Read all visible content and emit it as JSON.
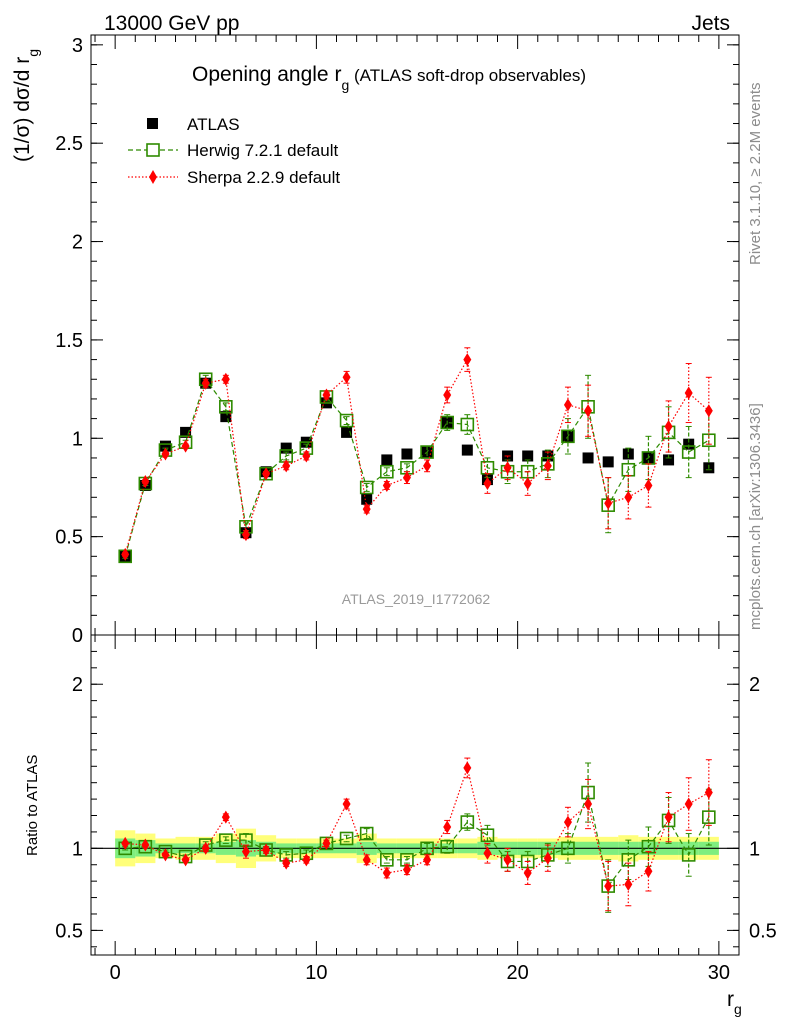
{
  "header": {
    "left": "13000 GeV pp",
    "right": "Jets"
  },
  "side_labels": {
    "rivet": "Rivet 3.1.10, ≥ 2.2M events",
    "mcplots": "mcplots.cern.ch [arXiv:1306.3436]"
  },
  "watermark": "ATLAS_2019_I1772062",
  "chart_data": [
    {
      "type": "scatter",
      "title_main": "Opening angle r",
      "title_sub": "g",
      "title_tail": " (ATLAS soft-drop observables)",
      "ylabel_main": "(1/σ) dσ/d r",
      "ylabel_sub": "g",
      "xlim": [
        -1.2,
        31
      ],
      "ylim": [
        0,
        3.05
      ],
      "yticks": [
        0,
        0.5,
        1,
        1.5,
        2,
        2.5,
        3
      ],
      "ytick_labels": [
        "0",
        "0.5",
        "1",
        "1.5",
        "2",
        "2.5",
        "3"
      ],
      "legend_position": "top-left",
      "series": [
        {
          "name": "ATLAS",
          "color": "#000000",
          "marker": "square-filled",
          "x": [
            0.5,
            1.5,
            2.5,
            3.5,
            4.5,
            5.5,
            6.5,
            7.5,
            8.5,
            9.5,
            10.5,
            11.5,
            12.5,
            13.5,
            14.5,
            15.5,
            16.5,
            17.5,
            18.5,
            19.5,
            20.5,
            21.5,
            22.5,
            23.5,
            24.5,
            25.5,
            26.5,
            27.5,
            28.5,
            29.5
          ],
          "y": [
            0.4,
            0.76,
            0.96,
            1.03,
            1.28,
            1.11,
            0.52,
            0.83,
            0.95,
            0.98,
            1.18,
            1.03,
            0.69,
            0.89,
            0.92,
            0.93,
            1.08,
            0.94,
            0.79,
            0.91,
            0.91,
            0.91,
            1.01,
            0.9,
            0.88,
            0.92,
            0.9,
            0.89,
            0.97,
            0.85
          ],
          "err": [
            0,
            0,
            0,
            0,
            0,
            0,
            0,
            0,
            0,
            0,
            0,
            0,
            0,
            0,
            0,
            0,
            0,
            0,
            0,
            0,
            0,
            0,
            0,
            0,
            0,
            0,
            0,
            0,
            0,
            0
          ]
        },
        {
          "name": "Herwig 7.2.1 default",
          "color": "#2e8b00",
          "marker": "square-open",
          "line": "dashed",
          "x": [
            0.5,
            1.5,
            2.5,
            3.5,
            4.5,
            5.5,
            6.5,
            7.5,
            8.5,
            9.5,
            10.5,
            11.5,
            12.5,
            13.5,
            14.5,
            15.5,
            16.5,
            17.5,
            18.5,
            19.5,
            20.5,
            21.5,
            22.5,
            23.5,
            24.5,
            25.5,
            26.5,
            27.5,
            28.5,
            29.5
          ],
          "y": [
            0.4,
            0.77,
            0.94,
            0.98,
            1.3,
            1.16,
            0.55,
            0.82,
            0.91,
            0.95,
            1.21,
            1.09,
            0.75,
            0.83,
            0.85,
            0.93,
            1.08,
            1.07,
            0.85,
            0.83,
            0.83,
            0.87,
            1.01,
            1.16,
            0.66,
            0.84,
            0.9,
            1.03,
            0.93,
            0.99
          ],
          "err": [
            0.01,
            0.01,
            0.01,
            0.01,
            0.02,
            0.02,
            0.02,
            0.01,
            0.02,
            0.02,
            0.02,
            0.02,
            0.02,
            0.02,
            0.02,
            0.03,
            0.04,
            0.05,
            0.05,
            0.06,
            0.06,
            0.07,
            0.09,
            0.16,
            0.14,
            0.11,
            0.11,
            0.13,
            0.13,
            0.15
          ]
        },
        {
          "name": "Sherpa 2.2.9 default",
          "color": "#ff0000",
          "marker": "diamond-filled",
          "line": "dotted",
          "x": [
            0.5,
            1.5,
            2.5,
            3.5,
            4.5,
            5.5,
            6.5,
            7.5,
            8.5,
            9.5,
            10.5,
            11.5,
            12.5,
            13.5,
            14.5,
            15.5,
            16.5,
            17.5,
            18.5,
            19.5,
            20.5,
            21.5,
            22.5,
            23.5,
            24.5,
            25.5,
            26.5,
            27.5,
            28.5,
            29.5
          ],
          "y": [
            0.41,
            0.78,
            0.92,
            0.96,
            1.28,
            1.3,
            0.51,
            0.82,
            0.86,
            0.91,
            1.22,
            1.31,
            0.64,
            0.76,
            0.8,
            0.86,
            1.22,
            1.4,
            0.77,
            0.85,
            0.77,
            0.86,
            1.17,
            1.14,
            0.67,
            0.7,
            0.76,
            1.06,
            1.23,
            1.14
          ],
          "err": [
            0.01,
            0.01,
            0.01,
            0.01,
            0.02,
            0.02,
            0.02,
            0.01,
            0.02,
            0.02,
            0.02,
            0.03,
            0.02,
            0.02,
            0.03,
            0.03,
            0.04,
            0.06,
            0.05,
            0.06,
            0.06,
            0.07,
            0.09,
            0.13,
            0.13,
            0.11,
            0.11,
            0.13,
            0.15,
            0.17
          ]
        }
      ]
    },
    {
      "type": "scatter",
      "ylabel": "Ratio to ATLAS",
      "xlabel_main": "r",
      "xlabel_sub": "g",
      "xlim": [
        -1.2,
        31
      ],
      "ylim": [
        0.35,
        2.3
      ],
      "xticks": [
        0,
        10,
        20,
        30
      ],
      "xtick_labels": [
        "0",
        "10",
        "20",
        "30"
      ],
      "yticks": [
        0.5,
        1,
        2
      ],
      "ytick_labels": [
        "0.5",
        "1",
        "2"
      ],
      "reference_line": 1,
      "bands": {
        "inner_color": "#7fee7f",
        "outer_color": "#ffff7a",
        "x": [
          0.5,
          1.5,
          2.5,
          3.5,
          4.5,
          5.5,
          6.5,
          7.5,
          8.5,
          9.5,
          10.5,
          11.5,
          12.5,
          13.5,
          14.5,
          15.5,
          16.5,
          17.5,
          18.5,
          19.5,
          20.5,
          21.5,
          22.5,
          23.5,
          24.5,
          25.5,
          26.5,
          27.5,
          28.5,
          29.5
        ],
        "inner": [
          0.06,
          0.05,
          0.03,
          0.03,
          0.03,
          0.04,
          0.05,
          0.04,
          0.03,
          0.03,
          0.03,
          0.03,
          0.04,
          0.03,
          0.03,
          0.03,
          0.03,
          0.03,
          0.04,
          0.04,
          0.04,
          0.04,
          0.04,
          0.04,
          0.04,
          0.04,
          0.04,
          0.04,
          0.04,
          0.04
        ],
        "outer": [
          0.11,
          0.09,
          0.06,
          0.07,
          0.07,
          0.09,
          0.12,
          0.08,
          0.06,
          0.06,
          0.06,
          0.06,
          0.09,
          0.06,
          0.06,
          0.06,
          0.06,
          0.06,
          0.07,
          0.06,
          0.06,
          0.06,
          0.07,
          0.07,
          0.07,
          0.08,
          0.07,
          0.07,
          0.07,
          0.07
        ]
      },
      "series": [
        {
          "name": "Herwig 7.2.1 default",
          "color": "#2e8b00",
          "marker": "square-open",
          "line": "dashed",
          "x": [
            0.5,
            1.5,
            2.5,
            3.5,
            4.5,
            5.5,
            6.5,
            7.5,
            8.5,
            9.5,
            10.5,
            11.5,
            12.5,
            13.5,
            14.5,
            15.5,
            16.5,
            17.5,
            18.5,
            19.5,
            20.5,
            21.5,
            22.5,
            23.5,
            24.5,
            25.5,
            26.5,
            27.5,
            28.5,
            29.5
          ],
          "y": [
            1.0,
            1.01,
            0.98,
            0.95,
            1.02,
            1.05,
            1.05,
            0.99,
            0.96,
            0.97,
            1.03,
            1.06,
            1.09,
            0.93,
            0.93,
            1.0,
            1.01,
            1.16,
            1.08,
            0.92,
            0.92,
            0.96,
            1.0,
            1.34,
            0.77,
            0.93,
            1.01,
            1.17,
            0.96,
            1.19
          ],
          "err": [
            0.01,
            0.01,
            0.01,
            0.01,
            0.02,
            0.02,
            0.04,
            0.02,
            0.02,
            0.02,
            0.02,
            0.02,
            0.03,
            0.02,
            0.02,
            0.03,
            0.04,
            0.05,
            0.06,
            0.06,
            0.06,
            0.07,
            0.09,
            0.18,
            0.16,
            0.12,
            0.12,
            0.14,
            0.13,
            0.17
          ]
        },
        {
          "name": "Sherpa 2.2.9 default",
          "color": "#ff0000",
          "marker": "diamond-filled",
          "line": "dotted",
          "x": [
            0.5,
            1.5,
            2.5,
            3.5,
            4.5,
            5.5,
            6.5,
            7.5,
            8.5,
            9.5,
            10.5,
            11.5,
            12.5,
            13.5,
            14.5,
            15.5,
            16.5,
            17.5,
            18.5,
            19.5,
            20.5,
            21.5,
            22.5,
            23.5,
            24.5,
            25.5,
            26.5,
            27.5,
            28.5,
            29.5
          ],
          "y": [
            1.03,
            1.02,
            0.96,
            0.93,
            1.0,
            1.19,
            0.98,
            0.99,
            0.91,
            0.93,
            1.03,
            1.27,
            0.93,
            0.85,
            0.87,
            0.93,
            1.13,
            1.49,
            0.97,
            0.93,
            0.85,
            0.94,
            1.16,
            1.27,
            0.77,
            0.78,
            0.86,
            1.19,
            1.27,
            1.34
          ],
          "err": [
            0.01,
            0.01,
            0.01,
            0.01,
            0.02,
            0.02,
            0.04,
            0.02,
            0.02,
            0.02,
            0.02,
            0.03,
            0.03,
            0.03,
            0.03,
            0.03,
            0.04,
            0.06,
            0.06,
            0.07,
            0.07,
            0.08,
            0.09,
            0.15,
            0.15,
            0.13,
            0.12,
            0.15,
            0.16,
            0.2
          ]
        }
      ]
    }
  ]
}
